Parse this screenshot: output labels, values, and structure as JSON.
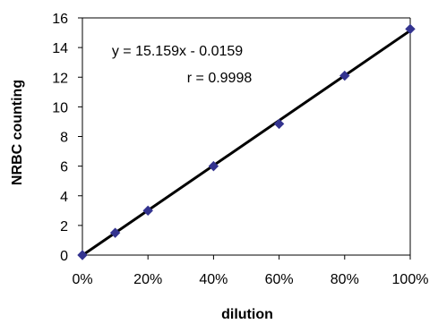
{
  "chart_data": {
    "type": "scatter",
    "title": "",
    "xlabel": "dilution",
    "ylabel": "NRBC counting",
    "xlim": [
      0,
      1
    ],
    "ylim": [
      0,
      16
    ],
    "x_ticks": [
      0,
      0.2,
      0.4,
      0.6,
      0.8,
      1.0
    ],
    "x_tick_labels": [
      "0%",
      "20%",
      "40%",
      "60%",
      "80%",
      "100%"
    ],
    "y_ticks": [
      0,
      2,
      4,
      6,
      8,
      10,
      12,
      14,
      16
    ],
    "y_tick_labels": [
      "0",
      "2",
      "4",
      "6",
      "8",
      "10",
      "12",
      "14",
      "16"
    ],
    "grid": false,
    "legend": "none",
    "series": [
      {
        "marker": "diamond",
        "color": "#33338f",
        "points": [
          {
            "x": 0.0,
            "y": 0.0
          },
          {
            "x": 0.1,
            "y": 1.5
          },
          {
            "x": 0.2,
            "y": 3.0
          },
          {
            "x": 0.4,
            "y": 6.0
          },
          {
            "x": 0.6,
            "y": 8.85
          },
          {
            "x": 0.8,
            "y": 12.1
          },
          {
            "x": 1.0,
            "y": 15.25
          }
        ]
      }
    ],
    "trendline": {
      "slope": 15.159,
      "intercept": -0.0159,
      "color": "#000000"
    },
    "annotations": {
      "equation": "y = 15.159x - 0.0159",
      "r_value": "r = 0.9998"
    }
  }
}
